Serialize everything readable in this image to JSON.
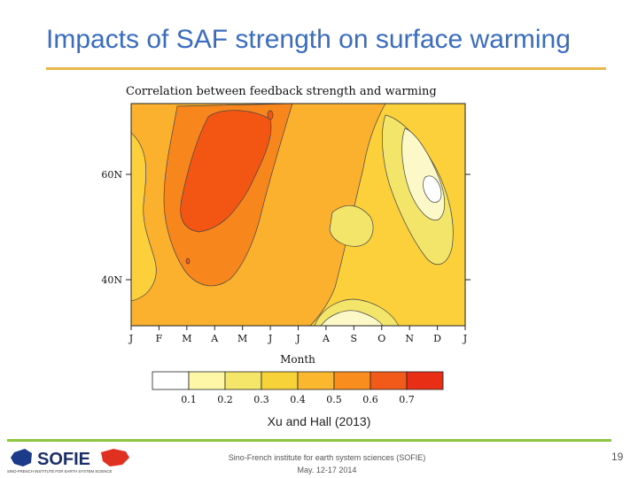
{
  "slide": {
    "title": "Impacts of SAF strength on surface warming",
    "citation": "Xu and Hall  (2013)",
    "footer_line1": "Sino-French institute for earth system sciences (SOFIE)",
    "footer_line2": "May. 12-17 2014",
    "page_number": "19"
  },
  "logo": {
    "text": "SOFIE",
    "subtitle": "SINO-FRENCH INSTITUTE FOR EARTH SYSTEM SCIENCE",
    "colors": {
      "text": "#1c2f6b",
      "flag_left": "#1c3a8a",
      "flag_right": "#e03020"
    }
  },
  "chart_data": {
    "type": "heatmap",
    "title": "Correlation between feedback strength and warming",
    "xlabel": "Month",
    "x_ticks": [
      "J",
      "F",
      "M",
      "A",
      "M",
      "J",
      "J",
      "A",
      "S",
      "O",
      "N",
      "D",
      "J"
    ],
    "y_ticks": [
      "60N",
      "40N"
    ],
    "colorbar_levels": [
      "0.1",
      "0.2",
      "0.3",
      "0.4",
      "0.5",
      "0.6",
      "0.7"
    ],
    "colorbar_colors": [
      "#ffffff",
      "#fff7a8",
      "#f5e66a",
      "#f7d238",
      "#fbb82e",
      "#f98e1f",
      "#f25a1a",
      "#e82e15"
    ],
    "fill_colors": {
      "background": "#fbd03a",
      "higher": "#fbb12e",
      "high": "#f7861c",
      "peak": "#f35512",
      "low": "#f3e46a",
      "lowest": "#fdf8c8",
      "min": "#ffffff"
    },
    "features": [
      {
        "label": "peak",
        "value_range": "0.6-0.7",
        "months": "Mar-Jun",
        "lat": "45N-75N"
      },
      {
        "label": "low",
        "value_range": "0.1-0.3",
        "months": "Oct-Nov",
        "lat": "55N-72N"
      }
    ]
  }
}
